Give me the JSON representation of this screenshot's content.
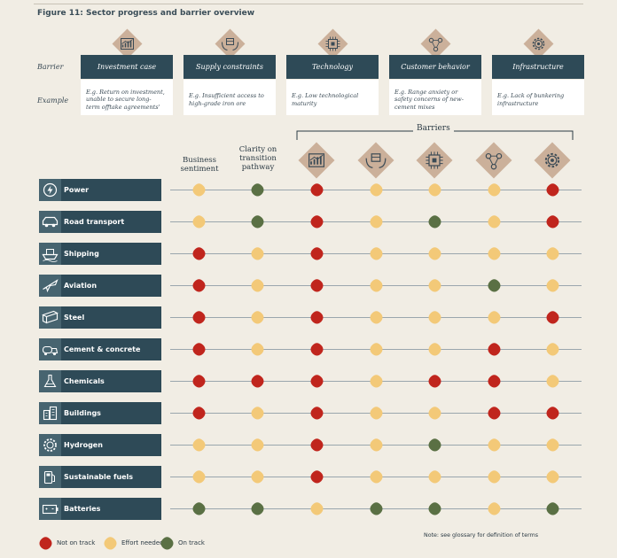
{
  "figure_title": "Figure 11: Sector progress and barrier overview",
  "row_labels": {
    "barrier": "Barrier",
    "example": "Example"
  },
  "barrier_definitions": [
    {
      "name": "Investment case",
      "example": [
        "E.g. Return on investment,",
        "unable to secure long-",
        "term offtake agreements'"
      ],
      "icon": "chart-growth-icon"
    },
    {
      "name": "Supply constraints",
      "example": [
        "E.g. Insufficient access to",
        "high-grade iron ore"
      ],
      "icon": "hands-box-icon"
    },
    {
      "name": "Technology",
      "example": [
        "E.g. Low technological",
        "maturity"
      ],
      "icon": "chip-icon"
    },
    {
      "name": "Customer behavior",
      "example": [
        "E.g. Range anxiety or",
        "safety concerns of new-",
        "cement mixes"
      ],
      "icon": "people-network-icon"
    },
    {
      "name": "Infrastructure",
      "example": [
        "E.g. Lack of bunkering",
        "infrastructure"
      ],
      "icon": "gear-icon"
    }
  ],
  "chart_data": {
    "type": "table",
    "status_colors": {
      "not_on_track": "#c0251d",
      "effort_needed": "#f3c978",
      "on_track": "#5a7044"
    },
    "column_headers": {
      "business_sentiment": [
        "Business",
        "sentiment"
      ],
      "clarity": [
        "Clarity on",
        "transition",
        "pathway"
      ],
      "barriers_group": "Barriers"
    },
    "columns": [
      "Business sentiment",
      "Clarity on transition pathway",
      "Investment case",
      "Supply constraints",
      "Technology",
      "Customer behavior",
      "Infrastructure"
    ],
    "rows": [
      {
        "sector": "Power",
        "icon": "power-icon",
        "statuses": [
          "effort_needed",
          "on_track",
          "not_on_track",
          "effort_needed",
          "effort_needed",
          "effort_needed",
          "not_on_track"
        ]
      },
      {
        "sector": "Road transport",
        "icon": "car-icon",
        "statuses": [
          "effort_needed",
          "on_track",
          "not_on_track",
          "effort_needed",
          "on_track",
          "effort_needed",
          "not_on_track"
        ]
      },
      {
        "sector": "Shipping",
        "icon": "ship-icon",
        "statuses": [
          "not_on_track",
          "effort_needed",
          "not_on_track",
          "effort_needed",
          "effort_needed",
          "effort_needed",
          "effort_needed"
        ]
      },
      {
        "sector": "Aviation",
        "icon": "plane-icon",
        "statuses": [
          "not_on_track",
          "effort_needed",
          "not_on_track",
          "effort_needed",
          "effort_needed",
          "on_track",
          "effort_needed"
        ]
      },
      {
        "sector": "Steel",
        "icon": "steel-beam-icon",
        "statuses": [
          "not_on_track",
          "effort_needed",
          "not_on_track",
          "effort_needed",
          "effort_needed",
          "effort_needed",
          "not_on_track"
        ]
      },
      {
        "sector": "Cement & concrete",
        "icon": "cement-truck-icon",
        "statuses": [
          "not_on_track",
          "effort_needed",
          "not_on_track",
          "effort_needed",
          "effort_needed",
          "not_on_track",
          "effort_needed"
        ]
      },
      {
        "sector": "Chemicals",
        "icon": "flask-icon",
        "statuses": [
          "not_on_track",
          "not_on_track",
          "not_on_track",
          "effort_needed",
          "not_on_track",
          "not_on_track",
          "effort_needed"
        ]
      },
      {
        "sector": "Buildings",
        "icon": "buildings-icon",
        "statuses": [
          "not_on_track",
          "effort_needed",
          "not_on_track",
          "effort_needed",
          "effort_needed",
          "not_on_track",
          "not_on_track"
        ]
      },
      {
        "sector": "Hydrogen",
        "icon": "hydrogen-gear-icon",
        "statuses": [
          "effort_needed",
          "effort_needed",
          "not_on_track",
          "effort_needed",
          "on_track",
          "effort_needed",
          "effort_needed"
        ]
      },
      {
        "sector": "Sustainable fuels",
        "icon": "fuel-pump-icon",
        "statuses": [
          "effort_needed",
          "effort_needed",
          "not_on_track",
          "effort_needed",
          "effort_needed",
          "effort_needed",
          "effort_needed"
        ]
      },
      {
        "sector": "Batteries",
        "icon": "battery-icon",
        "statuses": [
          "on_track",
          "on_track",
          "effort_needed",
          "on_track",
          "on_track",
          "effort_needed",
          "on_track"
        ]
      }
    ],
    "legend": [
      {
        "key": "not_on_track",
        "label": "Not on track"
      },
      {
        "key": "effort_needed",
        "label": "Effort needed"
      },
      {
        "key": "on_track",
        "label": "On track"
      }
    ],
    "note": "Note: see glossary for definition of terms"
  }
}
